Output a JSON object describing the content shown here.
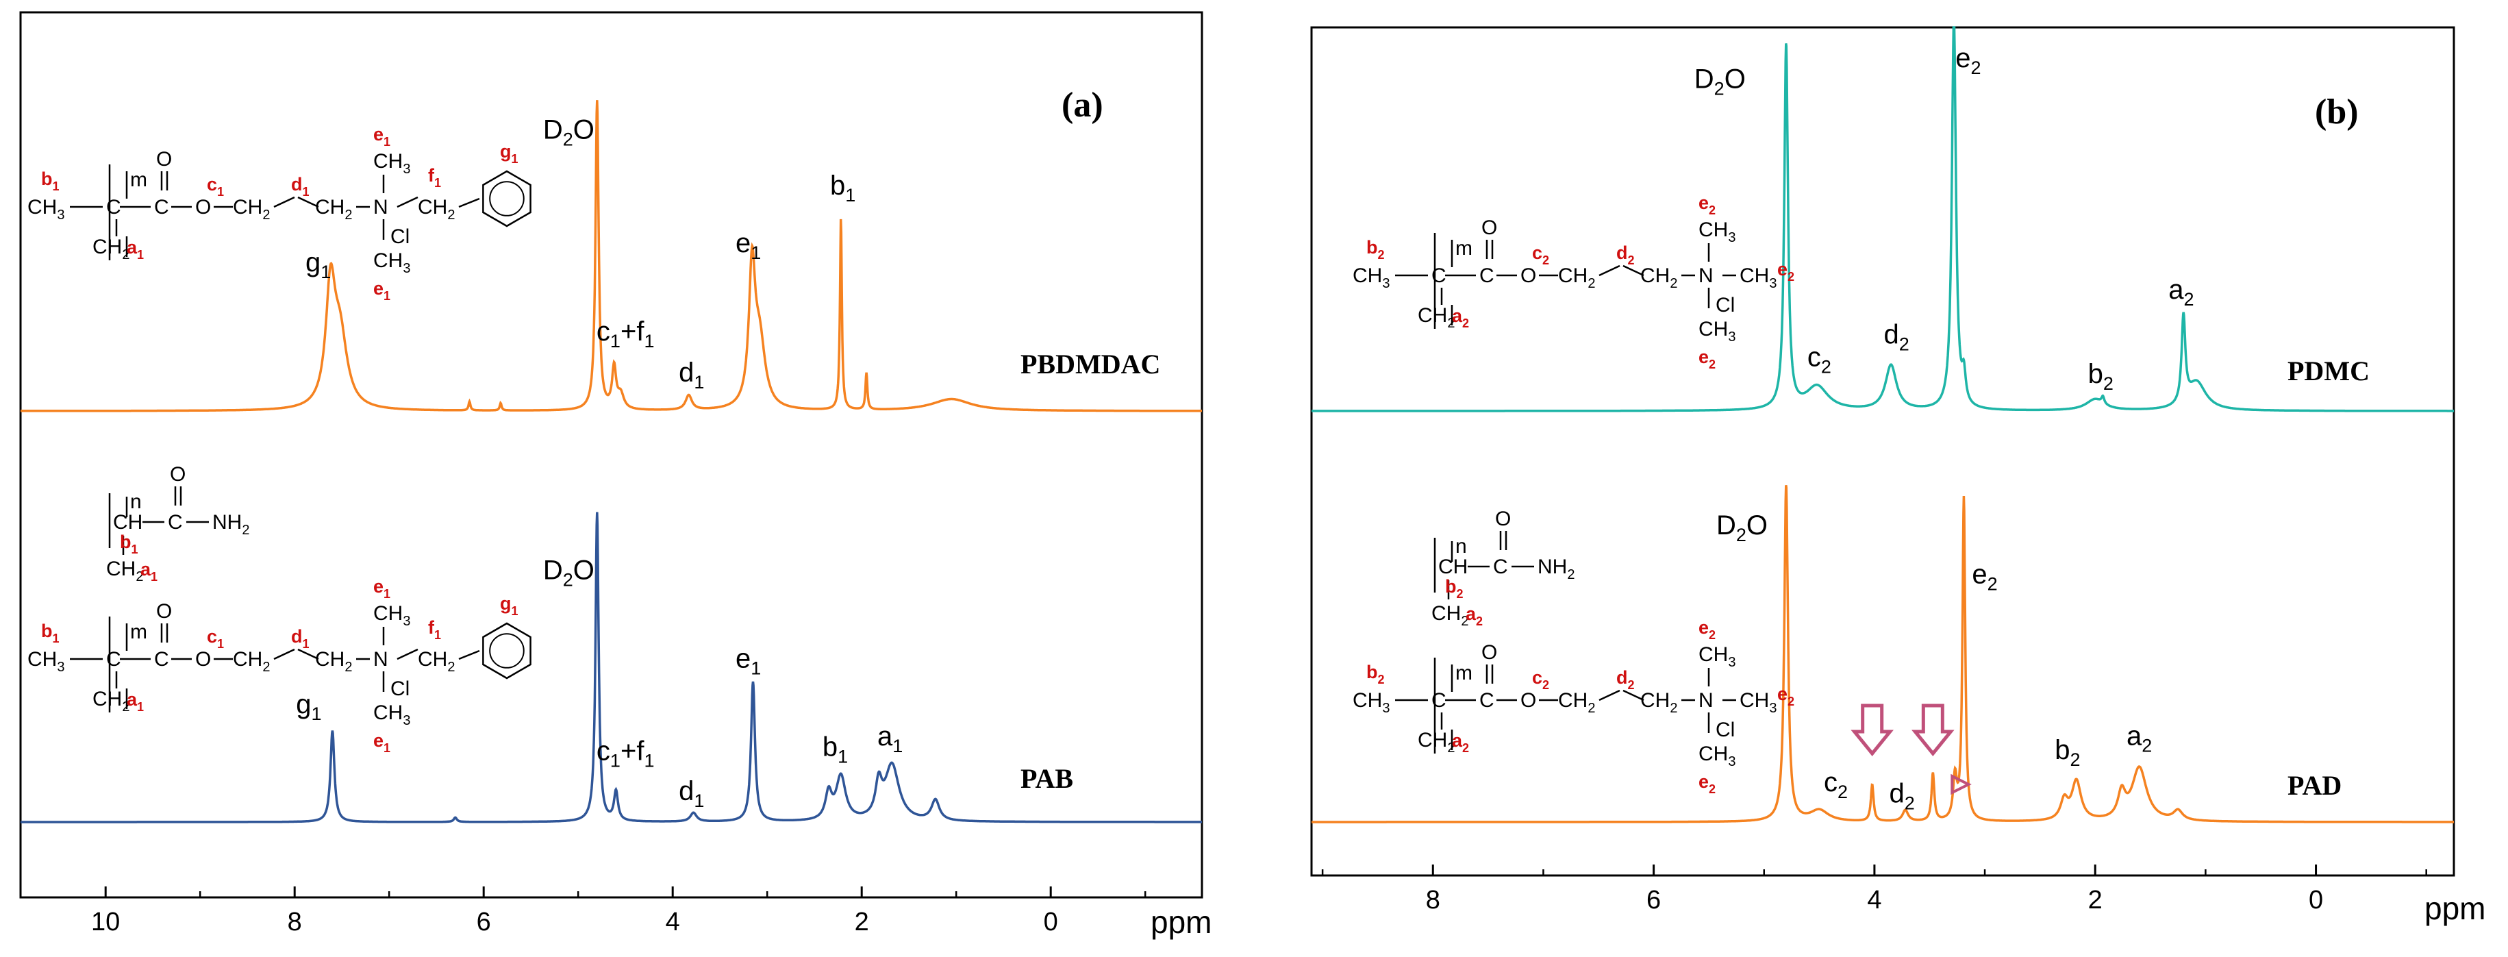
{
  "chart_data": [
    {
      "type": "line",
      "panel_label": "(a)",
      "x_unit": "ppm",
      "xlim": [
        10.9,
        -1.6
      ],
      "x_reversed": true,
      "ticks": [
        10,
        8,
        6,
        4,
        2,
        0
      ],
      "series": [
        {
          "name": "PBDMDAC",
          "color": "#f58220",
          "peaks": [
            {
              "ppm": 7.62,
              "h": 0.78,
              "w": 0.06
            },
            {
              "ppm": 7.52,
              "h": 0.48,
              "w": 0.09
            },
            {
              "ppm": 6.15,
              "h": 0.06,
              "w": 0.012
            },
            {
              "ppm": 5.82,
              "h": 0.05,
              "w": 0.012
            },
            {
              "ppm": 4.8,
              "h": 2.1,
              "w": 0.02
            },
            {
              "ppm": 4.62,
              "h": 0.28,
              "w": 0.025
            },
            {
              "ppm": 4.55,
              "h": 0.1,
              "w": 0.04
            },
            {
              "ppm": 3.83,
              "h": 0.1,
              "w": 0.04
            },
            {
              "ppm": 3.16,
              "h": 0.92,
              "w": 0.04
            },
            {
              "ppm": 3.08,
              "h": 0.45,
              "w": 0.07
            },
            {
              "ppm": 2.22,
              "h": 1.3,
              "w": 0.012
            },
            {
              "ppm": 1.95,
              "h": 0.25,
              "w": 0.012
            },
            {
              "ppm": 1.05,
              "h": 0.08,
              "w": 0.25
            }
          ],
          "labels": [
            {
              "main": "g",
              "sub": "1",
              "ppm": 7.75,
              "h": 0.95
            },
            {
              "main": "c",
              "sub": "1",
              "ppm": 4.5,
              "h": 0.48,
              "extra": "+f",
              "extra_sub": "1"
            },
            {
              "main": "d",
              "sub": "1",
              "ppm": 3.8,
              "h": 0.2
            },
            {
              "main": "e",
              "sub": "1",
              "ppm": 3.2,
              "h": 1.08
            },
            {
              "main": "b",
              "sub": "1",
              "ppm": 2.2,
              "h": 1.47
            },
            {
              "main": "D",
              "sub": "2",
              "ppm": 5.1,
              "h": 1.85,
              "extra": "O"
            }
          ]
        },
        {
          "name": "PAB",
          "color": "#2f5597",
          "peaks": [
            {
              "ppm": 7.6,
              "h": 0.62,
              "w": 0.025
            },
            {
              "ppm": 6.3,
              "h": 0.03,
              "w": 0.02
            },
            {
              "ppm": 4.8,
              "h": 2.1,
              "w": 0.02
            },
            {
              "ppm": 4.6,
              "h": 0.2,
              "w": 0.025
            },
            {
              "ppm": 3.78,
              "h": 0.06,
              "w": 0.04
            },
            {
              "ppm": 3.15,
              "h": 0.95,
              "w": 0.025
            },
            {
              "ppm": 2.35,
              "h": 0.18,
              "w": 0.04
            },
            {
              "ppm": 2.22,
              "h": 0.3,
              "w": 0.06
            },
            {
              "ppm": 1.82,
              "h": 0.22,
              "w": 0.04
            },
            {
              "ppm": 1.68,
              "h": 0.38,
              "w": 0.09
            },
            {
              "ppm": 1.22,
              "h": 0.14,
              "w": 0.05
            }
          ],
          "labels": [
            {
              "main": "g",
              "sub": "1",
              "ppm": 7.85,
              "h": 0.74
            },
            {
              "main": "c",
              "sub": "1",
              "ppm": 4.5,
              "h": 0.42,
              "extra": "+f",
              "extra_sub": "1"
            },
            {
              "main": "d",
              "sub": "1",
              "ppm": 3.8,
              "h": 0.15
            },
            {
              "main": "e",
              "sub": "1",
              "ppm": 3.2,
              "h": 1.05
            },
            {
              "main": "b",
              "sub": "1",
              "ppm": 2.28,
              "h": 0.45
            },
            {
              "main": "a",
              "sub": "1",
              "ppm": 1.7,
              "h": 0.52
            },
            {
              "main": "D",
              "sub": "2",
              "ppm": 5.1,
              "h": 1.65,
              "extra": "O"
            }
          ]
        }
      ]
    },
    {
      "type": "line",
      "panel_label": "(b)",
      "x_unit": "ppm",
      "xlim": [
        9.1,
        -1.25
      ],
      "x_reversed": true,
      "ticks": [
        8,
        6,
        4,
        2,
        0
      ],
      "series": [
        {
          "name": "PDMC",
          "color": "#1eb5a7",
          "peaks": [
            {
              "ppm": 4.8,
              "h": 2.6,
              "w": 0.02
            },
            {
              "ppm": 4.52,
              "h": 0.17,
              "w": 0.12
            },
            {
              "ppm": 3.85,
              "h": 0.32,
              "w": 0.06
            },
            {
              "ppm": 3.28,
              "h": 2.8,
              "w": 0.022
            },
            {
              "ppm": 3.19,
              "h": 0.2,
              "w": 0.02
            },
            {
              "ppm": 2.0,
              "h": 0.08,
              "w": 0.1
            },
            {
              "ppm": 1.93,
              "h": 0.05,
              "w": 0.015
            },
            {
              "ppm": 1.2,
              "h": 0.62,
              "w": 0.02
            },
            {
              "ppm": 1.08,
              "h": 0.2,
              "w": 0.1
            }
          ],
          "labels": [
            {
              "main": "c",
              "sub": "2",
              "ppm": 4.5,
              "h": 0.32
            },
            {
              "main": "d",
              "sub": "2",
              "ppm": 3.8,
              "h": 0.48
            },
            {
              "main": "b",
              "sub": "2",
              "ppm": 1.95,
              "h": 0.2
            },
            {
              "main": "a",
              "sub": "2",
              "ppm": 1.22,
              "h": 0.8
            },
            {
              "main": "e",
              "sub": "2",
              "ppm": 3.15,
              "h": 2.45
            },
            {
              "main": "D",
              "sub": "2",
              "ppm": 5.4,
              "h": 2.3,
              "extra": "O"
            }
          ]
        },
        {
          "name": "PAD",
          "color": "#f58220",
          "peaks": [
            {
              "ppm": 4.8,
              "h": 2.4,
              "w": 0.02
            },
            {
              "ppm": 4.5,
              "h": 0.08,
              "w": 0.1
            },
            {
              "ppm": 4.02,
              "h": 0.26,
              "w": 0.015
            },
            {
              "ppm": 3.72,
              "h": 0.08,
              "w": 0.03
            },
            {
              "ppm": 3.47,
              "h": 0.34,
              "w": 0.015
            },
            {
              "ppm": 3.27,
              "h": 0.3,
              "w": 0.02
            },
            {
              "ppm": 3.19,
              "h": 2.3,
              "w": 0.015
            },
            {
              "ppm": 2.28,
              "h": 0.14,
              "w": 0.04
            },
            {
              "ppm": 2.17,
              "h": 0.28,
              "w": 0.05
            },
            {
              "ppm": 1.76,
              "h": 0.18,
              "w": 0.04
            },
            {
              "ppm": 1.6,
              "h": 0.38,
              "w": 0.08
            },
            {
              "ppm": 1.25,
              "h": 0.07,
              "w": 0.05
            }
          ],
          "labels": [
            {
              "main": "c",
              "sub": "2",
              "ppm": 4.35,
              "h": 0.22
            },
            {
              "main": "d",
              "sub": "2",
              "ppm": 3.75,
              "h": 0.14
            },
            {
              "main": "b",
              "sub": "2",
              "ppm": 2.25,
              "h": 0.45
            },
            {
              "main": "a",
              "sub": "2",
              "ppm": 1.6,
              "h": 0.55
            },
            {
              "main": "e",
              "sub": "2",
              "ppm": 3.0,
              "h": 1.7
            },
            {
              "main": "D",
              "sub": "2",
              "ppm": 5.2,
              "h": 2.05,
              "extra": "O"
            }
          ],
          "arrows": [
            4.02,
            3.47
          ]
        }
      ]
    }
  ],
  "structures": {
    "top_labels": [
      "b",
      "c",
      "d",
      "e",
      "f",
      "g",
      "a"
    ],
    "common": {
      "ch3": "CH",
      "ch3_sub": "3",
      "ch2": "CH",
      "ch2_sub": "2",
      "nh2": "NH",
      "nh2_sub": "2",
      "o": "O",
      "n": "N",
      "cl": "Cl",
      "c": "C",
      "ch": "CH",
      "m": "m",
      "n_idx": "n",
      "plus": "+"
    }
  }
}
